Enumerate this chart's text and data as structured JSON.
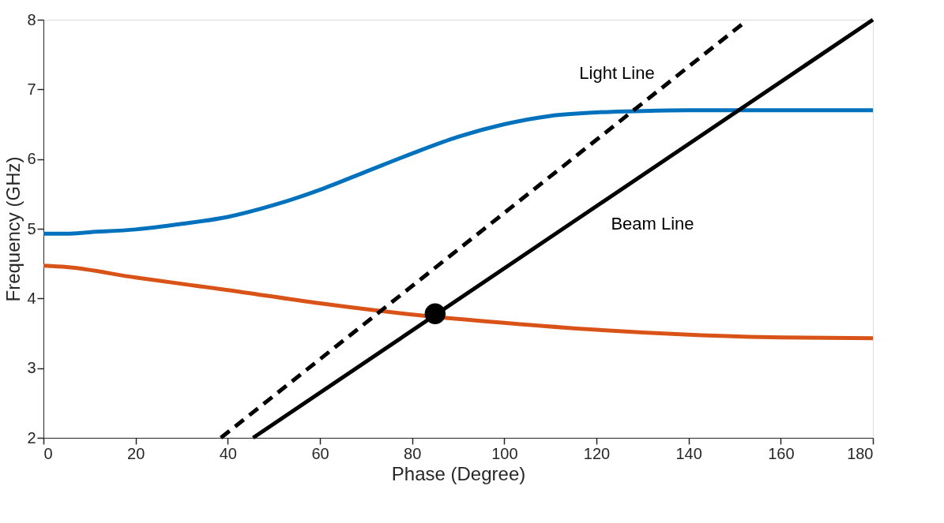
{
  "chart_data": {
    "type": "line",
    "xlabel": "Phase (Degree)",
    "ylabel": "Frequency (GHz)",
    "xlim": [
      0,
      180
    ],
    "ylim": [
      2,
      8
    ],
    "xticks": [
      0,
      20,
      40,
      60,
      80,
      100,
      120,
      140,
      160,
      180
    ],
    "yticks": [
      2,
      3,
      4,
      5,
      6,
      7,
      8
    ],
    "grid": false,
    "series": [
      {
        "color": "#0072bd",
        "x": [
          0,
          5,
          10,
          20,
          30,
          40,
          50,
          60,
          70,
          80,
          90,
          100,
          110,
          120,
          130,
          140,
          160,
          180
        ],
        "values": [
          4.93,
          4.93,
          4.95,
          4.99,
          5.07,
          5.17,
          5.34,
          5.56,
          5.82,
          6.08,
          6.32,
          6.5,
          6.62,
          6.67,
          6.69,
          6.7,
          6.7,
          6.7
        ]
      },
      {
        "color": "#d95319",
        "x": [
          0,
          5,
          20,
          40,
          60,
          80,
          100,
          120,
          140,
          160,
          180
        ],
        "values": [
          4.47,
          4.45,
          4.3,
          4.12,
          3.93,
          3.77,
          3.65,
          3.55,
          3.48,
          3.44,
          3.43
        ]
      },
      {
        "color": "#000000",
        "line_style": "dashed",
        "x": [
          38.5,
          151.7
        ],
        "values": [
          2,
          7.94
        ]
      },
      {
        "color": "#000000",
        "line_style": "solid",
        "x": [
          45.5,
          180
        ],
        "values": [
          2,
          8
        ]
      },
      {
        "type": "scatter",
        "marker": "circle",
        "color": "#000000",
        "x": [
          85
        ],
        "values": [
          3.78
        ]
      }
    ],
    "annotations": [
      "Light Line",
      "Beam Line"
    ]
  }
}
